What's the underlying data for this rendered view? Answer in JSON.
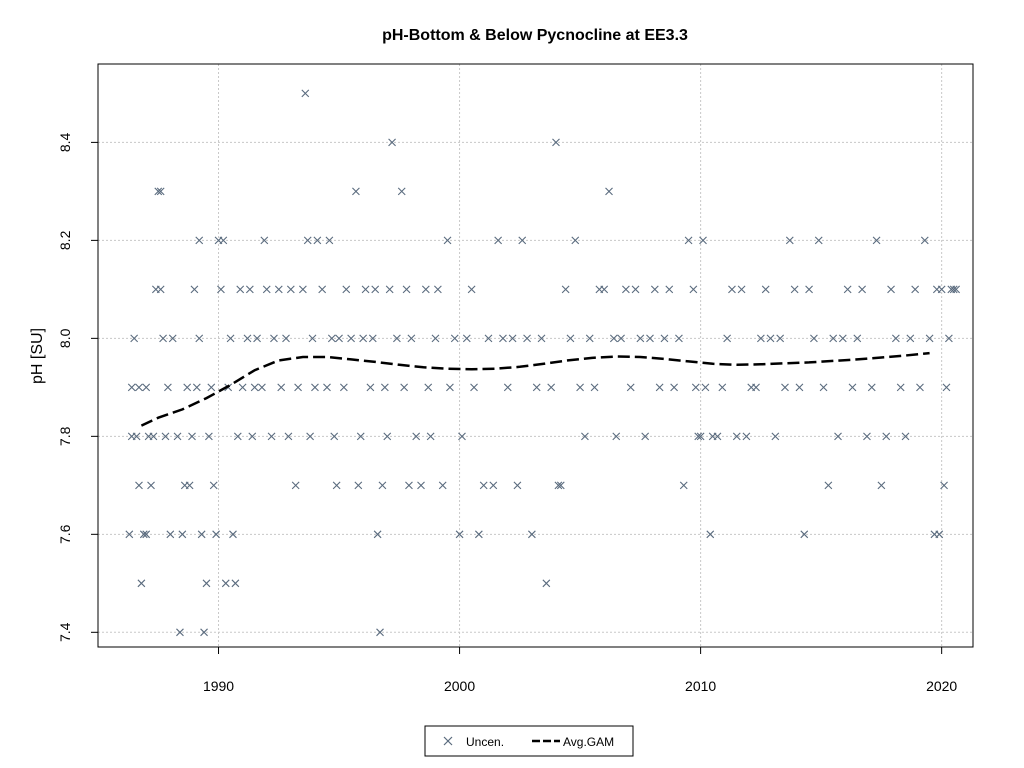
{
  "chart_data": {
    "type": "scatter",
    "title": "pH-Bottom & Below Pycnocline at EE3.3",
    "xlabel": "",
    "ylabel": "pH [SU]",
    "xlim": [
      1985,
      2021.3
    ],
    "ylim": [
      7.37,
      8.56
    ],
    "x_ticks": [
      1990,
      2000,
      2010,
      2020
    ],
    "y_ticks": [
      7.4,
      7.6,
      7.8,
      8.0,
      8.2,
      8.4
    ],
    "grid": true,
    "legend_position": "bottom-center",
    "colors": {
      "points": "#5a6b7e",
      "line": "#000000",
      "grid": "#c8c8c8"
    },
    "series": [
      {
        "name": "Uncen.",
        "marker": "x",
        "points": [
          [
            1986.3,
            7.6
          ],
          [
            1986.4,
            7.9
          ],
          [
            1986.4,
            7.8
          ],
          [
            1986.5,
            8.0
          ],
          [
            1986.6,
            7.8
          ],
          [
            1986.7,
            7.7
          ],
          [
            1986.7,
            7.9
          ],
          [
            1986.8,
            7.5
          ],
          [
            1986.9,
            7.6
          ],
          [
            1987.0,
            7.6
          ],
          [
            1987.0,
            7.9
          ],
          [
            1987.1,
            7.8
          ],
          [
            1987.2,
            7.7
          ],
          [
            1987.3,
            7.8
          ],
          [
            1987.4,
            8.1
          ],
          [
            1987.5,
            8.3
          ],
          [
            1987.6,
            8.3
          ],
          [
            1987.6,
            8.1
          ],
          [
            1987.7,
            8.0
          ],
          [
            1987.8,
            7.8
          ],
          [
            1987.9,
            7.9
          ],
          [
            1988.0,
            7.6
          ],
          [
            1988.1,
            8.0
          ],
          [
            1988.3,
            7.8
          ],
          [
            1988.4,
            7.4
          ],
          [
            1988.5,
            7.6
          ],
          [
            1988.6,
            7.7
          ],
          [
            1988.7,
            7.9
          ],
          [
            1988.8,
            7.7
          ],
          [
            1988.9,
            7.8
          ],
          [
            1989.0,
            8.1
          ],
          [
            1989.1,
            7.9
          ],
          [
            1989.2,
            8.0
          ],
          [
            1989.2,
            8.2
          ],
          [
            1989.3,
            7.6
          ],
          [
            1989.4,
            7.4
          ],
          [
            1989.5,
            7.5
          ],
          [
            1989.6,
            7.8
          ],
          [
            1989.7,
            7.9
          ],
          [
            1989.8,
            7.7
          ],
          [
            1989.9,
            7.6
          ],
          [
            1990.0,
            8.2
          ],
          [
            1990.1,
            8.1
          ],
          [
            1990.2,
            8.2
          ],
          [
            1990.3,
            7.5
          ],
          [
            1990.4,
            7.9
          ],
          [
            1990.5,
            8.0
          ],
          [
            1990.6,
            7.6
          ],
          [
            1990.7,
            7.5
          ],
          [
            1990.8,
            7.8
          ],
          [
            1990.9,
            8.1
          ],
          [
            1991.0,
            7.9
          ],
          [
            1991.2,
            8.0
          ],
          [
            1991.3,
            8.1
          ],
          [
            1991.4,
            7.8
          ],
          [
            1991.5,
            7.9
          ],
          [
            1991.6,
            8.0
          ],
          [
            1991.8,
            7.9
          ],
          [
            1991.9,
            8.2
          ],
          [
            1992.0,
            8.1
          ],
          [
            1992.2,
            7.8
          ],
          [
            1992.3,
            8.0
          ],
          [
            1992.5,
            8.1
          ],
          [
            1992.6,
            7.9
          ],
          [
            1992.8,
            8.0
          ],
          [
            1992.9,
            7.8
          ],
          [
            1993.0,
            8.1
          ],
          [
            1993.2,
            7.7
          ],
          [
            1993.3,
            7.9
          ],
          [
            1993.5,
            8.1
          ],
          [
            1993.6,
            8.5
          ],
          [
            1993.7,
            8.2
          ],
          [
            1993.8,
            7.8
          ],
          [
            1993.9,
            8.0
          ],
          [
            1994.0,
            7.9
          ],
          [
            1994.1,
            8.2
          ],
          [
            1994.3,
            8.1
          ],
          [
            1994.5,
            7.9
          ],
          [
            1994.6,
            8.2
          ],
          [
            1994.7,
            8.0
          ],
          [
            1994.8,
            7.8
          ],
          [
            1994.9,
            7.7
          ],
          [
            1995.0,
            8.0
          ],
          [
            1995.2,
            7.9
          ],
          [
            1995.3,
            8.1
          ],
          [
            1995.5,
            8.0
          ],
          [
            1995.7,
            8.3
          ],
          [
            1995.8,
            7.7
          ],
          [
            1995.9,
            7.8
          ],
          [
            1996.0,
            8.0
          ],
          [
            1996.1,
            8.1
          ],
          [
            1996.3,
            7.9
          ],
          [
            1996.4,
            8.0
          ],
          [
            1996.5,
            8.1
          ],
          [
            1996.6,
            7.6
          ],
          [
            1996.7,
            7.4
          ],
          [
            1996.8,
            7.7
          ],
          [
            1996.9,
            7.9
          ],
          [
            1997.0,
            7.8
          ],
          [
            1997.1,
            8.1
          ],
          [
            1997.2,
            8.4
          ],
          [
            1997.4,
            8.0
          ],
          [
            1997.6,
            8.3
          ],
          [
            1997.7,
            7.9
          ],
          [
            1997.8,
            8.1
          ],
          [
            1997.9,
            7.7
          ],
          [
            1998.0,
            8.0
          ],
          [
            1998.2,
            7.8
          ],
          [
            1998.4,
            7.7
          ],
          [
            1998.6,
            8.1
          ],
          [
            1998.7,
            7.9
          ],
          [
            1998.8,
            7.8
          ],
          [
            1999.0,
            8.0
          ],
          [
            1999.1,
            8.1
          ],
          [
            1999.3,
            7.7
          ],
          [
            1999.5,
            8.2
          ],
          [
            1999.6,
            7.9
          ],
          [
            1999.8,
            8.0
          ],
          [
            2000.0,
            7.6
          ],
          [
            2000.1,
            7.8
          ],
          [
            2000.3,
            8.0
          ],
          [
            2000.5,
            8.1
          ],
          [
            2000.6,
            7.9
          ],
          [
            2000.8,
            7.6
          ],
          [
            2001.0,
            7.7
          ],
          [
            2001.2,
            8.0
          ],
          [
            2001.4,
            7.7
          ],
          [
            2001.6,
            8.2
          ],
          [
            2001.8,
            8.0
          ],
          [
            2002.0,
            7.9
          ],
          [
            2002.2,
            8.0
          ],
          [
            2002.4,
            7.7
          ],
          [
            2002.6,
            8.2
          ],
          [
            2002.8,
            8.0
          ],
          [
            2003.0,
            7.6
          ],
          [
            2003.2,
            7.9
          ],
          [
            2003.4,
            8.0
          ],
          [
            2003.6,
            7.5
          ],
          [
            2003.8,
            7.9
          ],
          [
            2004.0,
            8.4
          ],
          [
            2004.1,
            7.7
          ],
          [
            2004.2,
            7.7
          ],
          [
            2004.4,
            8.1
          ],
          [
            2004.6,
            8.0
          ],
          [
            2004.8,
            8.2
          ],
          [
            2005.0,
            7.9
          ],
          [
            2005.2,
            7.8
          ],
          [
            2005.4,
            8.0
          ],
          [
            2005.6,
            7.9
          ],
          [
            2005.8,
            8.1
          ],
          [
            2006.0,
            8.1
          ],
          [
            2006.2,
            8.3
          ],
          [
            2006.4,
            8.0
          ],
          [
            2006.5,
            7.8
          ],
          [
            2006.7,
            8.0
          ],
          [
            2006.9,
            8.1
          ],
          [
            2007.1,
            7.9
          ],
          [
            2007.3,
            8.1
          ],
          [
            2007.5,
            8.0
          ],
          [
            2007.7,
            7.8
          ],
          [
            2007.9,
            8.0
          ],
          [
            2008.1,
            8.1
          ],
          [
            2008.3,
            7.9
          ],
          [
            2008.5,
            8.0
          ],
          [
            2008.7,
            8.1
          ],
          [
            2008.9,
            7.9
          ],
          [
            2009.1,
            8.0
          ],
          [
            2009.3,
            7.7
          ],
          [
            2009.5,
            8.2
          ],
          [
            2009.7,
            8.1
          ],
          [
            2009.8,
            7.9
          ],
          [
            2009.9,
            7.8
          ],
          [
            2010.0,
            7.8
          ],
          [
            2010.1,
            8.2
          ],
          [
            2010.2,
            7.9
          ],
          [
            2010.4,
            7.6
          ],
          [
            2010.5,
            7.8
          ],
          [
            2010.7,
            7.8
          ],
          [
            2010.9,
            7.9
          ],
          [
            2011.1,
            8.0
          ],
          [
            2011.3,
            8.1
          ],
          [
            2011.5,
            7.8
          ],
          [
            2011.7,
            8.1
          ],
          [
            2011.9,
            7.8
          ],
          [
            2012.1,
            7.9
          ],
          [
            2012.3,
            7.9
          ],
          [
            2012.5,
            8.0
          ],
          [
            2012.7,
            8.1
          ],
          [
            2012.9,
            8.0
          ],
          [
            2013.1,
            7.8
          ],
          [
            2013.3,
            8.0
          ],
          [
            2013.5,
            7.9
          ],
          [
            2013.7,
            8.2
          ],
          [
            2013.9,
            8.1
          ],
          [
            2014.1,
            7.9
          ],
          [
            2014.3,
            7.6
          ],
          [
            2014.5,
            8.1
          ],
          [
            2014.7,
            8.0
          ],
          [
            2014.9,
            8.2
          ],
          [
            2015.1,
            7.9
          ],
          [
            2015.3,
            7.7
          ],
          [
            2015.5,
            8.0
          ],
          [
            2015.7,
            7.8
          ],
          [
            2015.9,
            8.0
          ],
          [
            2016.1,
            8.1
          ],
          [
            2016.3,
            7.9
          ],
          [
            2016.5,
            8.0
          ],
          [
            2016.7,
            8.1
          ],
          [
            2016.9,
            7.8
          ],
          [
            2017.1,
            7.9
          ],
          [
            2017.3,
            8.2
          ],
          [
            2017.5,
            7.7
          ],
          [
            2017.7,
            7.8
          ],
          [
            2017.9,
            8.1
          ],
          [
            2018.1,
            8.0
          ],
          [
            2018.3,
            7.9
          ],
          [
            2018.5,
            7.8
          ],
          [
            2018.7,
            8.0
          ],
          [
            2018.9,
            8.1
          ],
          [
            2019.1,
            7.9
          ],
          [
            2019.3,
            8.2
          ],
          [
            2019.5,
            8.0
          ],
          [
            2019.7,
            7.6
          ],
          [
            2019.8,
            8.1
          ],
          [
            2019.9,
            7.6
          ],
          [
            2020.0,
            8.1
          ],
          [
            2020.1,
            7.7
          ],
          [
            2020.2,
            7.9
          ],
          [
            2020.3,
            8.0
          ],
          [
            2020.4,
            8.1
          ],
          [
            2020.5,
            8.1
          ],
          [
            2020.6,
            8.1
          ]
        ]
      },
      {
        "name": "Avg.GAM",
        "style": "dashed",
        "points": [
          [
            1986.8,
            7.822
          ],
          [
            1987.5,
            7.838
          ],
          [
            1988.5,
            7.855
          ],
          [
            1989.5,
            7.878
          ],
          [
            1990.5,
            7.905
          ],
          [
            1991.5,
            7.935
          ],
          [
            1992.5,
            7.955
          ],
          [
            1993.5,
            7.962
          ],
          [
            1994.5,
            7.962
          ],
          [
            1995.5,
            7.957
          ],
          [
            1996.5,
            7.952
          ],
          [
            1997.5,
            7.946
          ],
          [
            1998.5,
            7.941
          ],
          [
            1999.5,
            7.938
          ],
          [
            2000.5,
            7.937
          ],
          [
            2001.5,
            7.938
          ],
          [
            2002.5,
            7.942
          ],
          [
            2003.5,
            7.948
          ],
          [
            2004.5,
            7.955
          ],
          [
            2005.5,
            7.96
          ],
          [
            2006.5,
            7.963
          ],
          [
            2007.5,
            7.962
          ],
          [
            2008.5,
            7.958
          ],
          [
            2009.5,
            7.953
          ],
          [
            2010.5,
            7.948
          ],
          [
            2011.5,
            7.946
          ],
          [
            2012.5,
            7.947
          ],
          [
            2013.5,
            7.949
          ],
          [
            2014.5,
            7.951
          ],
          [
            2015.5,
            7.954
          ],
          [
            2016.5,
            7.957
          ],
          [
            2017.5,
            7.961
          ],
          [
            2018.5,
            7.965
          ],
          [
            2019.5,
            7.97
          ]
        ]
      }
    ]
  }
}
